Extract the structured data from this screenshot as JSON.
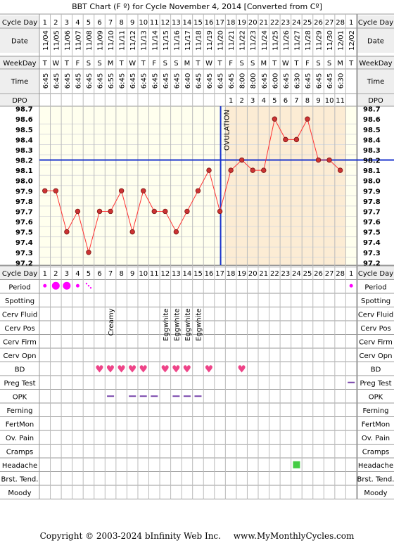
{
  "title": "BBT Chart (F º) for Cycle November 4, 2014  [Converted from Cº]",
  "row_labels": {
    "cycle_day": "Cycle Day",
    "date": "Date",
    "weekday": "WeekDay",
    "time": "Time",
    "dpo": "DPO"
  },
  "chart_data": {
    "type": "line",
    "x_label": "Cycle Day",
    "cycle_days": [
      1,
      2,
      3,
      4,
      5,
      6,
      7,
      8,
      9,
      10,
      11,
      12,
      13,
      14,
      15,
      16,
      17,
      18,
      19,
      20,
      21,
      22,
      23,
      24,
      25,
      26,
      27,
      28,
      1
    ],
    "dates": [
      "11/04",
      "11/05",
      "11/06",
      "11/07",
      "11/08",
      "11/09",
      "11/10",
      "11/11",
      "11/12",
      "11/13",
      "11/14",
      "11/15",
      "11/16",
      "11/17",
      "11/18",
      "11/19",
      "11/20",
      "11/21",
      "11/22",
      "11/23",
      "11/24",
      "11/25",
      "11/26",
      "11/27",
      "11/28",
      "11/29",
      "11/30",
      "12/01",
      "12/02"
    ],
    "weekdays": [
      "T",
      "W",
      "T",
      "F",
      "S",
      "S",
      "M",
      "T",
      "W",
      "T",
      "F",
      "S",
      "S",
      "M",
      "T",
      "W",
      "T",
      "F",
      "S",
      "S",
      "M",
      "T",
      "W",
      "T",
      "F",
      "S",
      "S",
      "M",
      "T"
    ],
    "times": [
      "6:45",
      "6:45",
      "6:45",
      "6:45",
      "6:45",
      "6:45",
      "6:55",
      "6:45",
      "6:45",
      "6:45",
      "6:45",
      "6:45",
      "6:45",
      "6:40",
      "6:45",
      "6:45",
      "6:45",
      "6:45",
      "8:00",
      "8:00",
      "6:45",
      "6:00",
      "6:45",
      "6:30",
      "6:45",
      "6:45",
      "6:45",
      "6:30",
      ""
    ],
    "dpo": [
      "",
      "",
      "",
      "",
      "",
      "",
      "",
      "",
      "",
      "",
      "",
      "",
      "",
      "",
      "",
      "",
      "",
      "1",
      "2",
      "3",
      "4",
      "5",
      "6",
      "7",
      "8",
      "9",
      "10",
      "11",
      ""
    ],
    "temperatures": [
      97.9,
      97.9,
      97.5,
      97.7,
      97.3,
      97.7,
      97.7,
      97.9,
      97.5,
      97.9,
      97.7,
      97.7,
      97.5,
      97.7,
      97.9,
      98.1,
      97.7,
      98.1,
      98.2,
      98.1,
      98.1,
      98.6,
      98.4,
      98.4,
      98.6,
      98.2,
      98.2,
      98.1,
      null
    ],
    "y_ticks": [
      "98.7",
      "98.6",
      "98.5",
      "98.4",
      "98.3",
      "98.2",
      "98.1",
      "98.0",
      "97.9",
      "97.8",
      "97.7",
      "97.6",
      "97.5",
      "97.4",
      "97.3",
      "97.2"
    ],
    "ylim": [
      97.2,
      98.7
    ],
    "coverline": 98.2,
    "ovulation_day_index": 16,
    "ovulation_label": "OVULATION",
    "luteal_from_index": 17,
    "luteal_to_index": 27,
    "colors": {
      "line": "#ff3333",
      "point_fill": "#cc3333",
      "coverline": "#1a33cc",
      "ovulation_line": "#1a33cc",
      "luteal_shade": "#fcecd4",
      "plot_bg": "#ffffee",
      "grid": "#dddddd",
      "header_bg": "#eeeeee",
      "period": "#ff00ff",
      "heart": "#ee4488",
      "opk": "#7744aa",
      "preg_test": "#7744aa",
      "headache": "#44cc44"
    }
  },
  "observations": [
    {
      "label": "Period",
      "kind": "period",
      "marks": [
        {
          "i": 0,
          "size": "small"
        },
        {
          "i": 1,
          "size": "large"
        },
        {
          "i": 2,
          "size": "large"
        },
        {
          "i": 3,
          "size": "small"
        },
        {
          "i": 4,
          "size": "spotty"
        },
        {
          "i": 28,
          "size": "small"
        }
      ]
    },
    {
      "label": "Spotting",
      "kind": "none",
      "marks": []
    },
    {
      "label": "Cerv Fluid",
      "kind": "text",
      "marks": [
        {
          "i": 6,
          "text": "Creamy"
        },
        {
          "i": 11,
          "text": "Eggwhite"
        },
        {
          "i": 12,
          "text": "Eggwhite"
        },
        {
          "i": 13,
          "text": "Eggwhite"
        },
        {
          "i": 14,
          "text": "Eggwhite"
        }
      ]
    },
    {
      "label": "Cerv Pos",
      "kind": "none",
      "marks": []
    },
    {
      "label": "Cerv Firm",
      "kind": "none",
      "marks": []
    },
    {
      "label": "Cerv Opn",
      "kind": "none",
      "marks": []
    },
    {
      "label": "BD",
      "kind": "heart",
      "marks": [
        {
          "i": 5
        },
        {
          "i": 6
        },
        {
          "i": 7
        },
        {
          "i": 8
        },
        {
          "i": 9
        },
        {
          "i": 11
        },
        {
          "i": 12
        },
        {
          "i": 13
        },
        {
          "i": 15
        },
        {
          "i": 18
        }
      ]
    },
    {
      "label": "Preg Test",
      "kind": "dash",
      "marks": [
        {
          "i": 28
        }
      ]
    },
    {
      "label": "OPK",
      "kind": "dash",
      "marks": [
        {
          "i": 6
        },
        {
          "i": 8
        },
        {
          "i": 9
        },
        {
          "i": 10
        },
        {
          "i": 12
        },
        {
          "i": 13
        },
        {
          "i": 14
        }
      ]
    },
    {
      "label": "Ferning",
      "kind": "none",
      "marks": []
    },
    {
      "label": "FertMon",
      "kind": "none",
      "marks": []
    },
    {
      "label": "Ov. Pain",
      "kind": "none",
      "marks": []
    },
    {
      "label": "Cramps",
      "kind": "none",
      "marks": []
    },
    {
      "label": "Headache",
      "kind": "square",
      "marks": [
        {
          "i": 23
        }
      ]
    },
    {
      "label": "Brst. Tend.",
      "kind": "none",
      "marks": []
    },
    {
      "label": "Moody",
      "kind": "none",
      "marks": []
    }
  ],
  "footer": {
    "copyright": "Copyright © 2003-2024 bInfinity Web Inc.",
    "site": "www.MyMonthlyCycles.com"
  }
}
